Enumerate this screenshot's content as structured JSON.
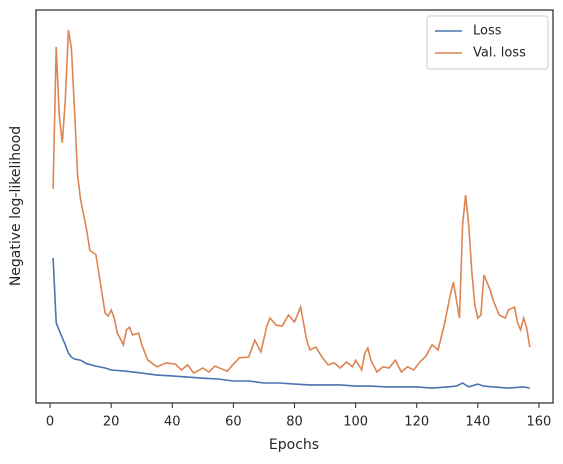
{
  "chart_data": {
    "type": "line",
    "x_label": "Epochs",
    "y_label": "Negative log-likelihood",
    "xlim": [
      -4.6,
      164.6
    ],
    "xticks": [
      0,
      20,
      40,
      60,
      80,
      100,
      120,
      140,
      160
    ],
    "ylim": [
      0,
      100
    ],
    "grid": false,
    "legend": "upper right",
    "series": [
      {
        "name": "Loss",
        "color": "#4c72b0",
        "x": [
          1,
          2,
          3,
          4,
          5,
          6,
          7,
          8,
          10,
          12,
          15,
          18,
          20,
          25,
          30,
          35,
          40,
          45,
          50,
          55,
          60,
          65,
          70,
          75,
          80,
          85,
          90,
          95,
          100,
          105,
          110,
          115,
          120,
          125,
          130,
          133,
          135,
          137,
          140,
          142,
          145,
          150,
          155,
          157
        ],
        "values": [
          36.9,
          20.4,
          18.5,
          16.6,
          14.8,
          12.7,
          11.7,
          11.2,
          10.9,
          10.0,
          9.4,
          8.9,
          8.4,
          8.1,
          7.6,
          7.1,
          6.9,
          6.6,
          6.3,
          6.1,
          5.6,
          5.6,
          5.1,
          5.1,
          4.8,
          4.6,
          4.6,
          4.6,
          4.3,
          4.3,
          4.1,
          4.1,
          4.1,
          3.8,
          4.1,
          4.3,
          5.1,
          4.1,
          4.8,
          4.3,
          4.1,
          3.8,
          4.1,
          3.8
        ]
      },
      {
        "name": "Val. loss",
        "color": "#dd8452",
        "x": [
          1,
          2,
          3,
          4,
          5,
          6,
          7,
          8,
          9,
          10,
          12,
          13,
          15,
          18,
          19,
          20,
          21,
          22,
          24,
          25,
          26,
          27,
          29,
          30,
          32,
          35,
          38,
          41,
          43,
          45,
          47,
          50,
          52,
          54,
          56,
          58,
          60,
          62,
          65,
          67,
          69,
          71,
          72,
          74,
          76,
          78,
          80,
          82,
          84,
          85,
          87,
          89,
          91,
          93,
          95,
          97,
          99,
          100,
          102,
          103,
          104,
          105,
          107,
          109,
          111,
          113,
          115,
          117,
          119,
          121,
          123,
          125,
          127,
          129,
          131,
          132,
          133,
          134,
          135,
          136,
          137,
          138,
          139,
          140,
          141,
          142,
          144,
          145,
          147,
          149,
          150,
          152,
          153,
          154,
          155,
          156,
          157
        ],
        "values": [
          54.5,
          90.6,
          73.3,
          66.2,
          77.1,
          94.9,
          90.3,
          74.6,
          58.0,
          51.7,
          44.0,
          38.9,
          37.7,
          22.9,
          22.1,
          23.7,
          21.6,
          17.8,
          14.8,
          18.6,
          19.3,
          17.3,
          17.8,
          14.8,
          10.9,
          9.2,
          10.2,
          9.9,
          8.4,
          9.7,
          7.6,
          8.9,
          7.9,
          9.4,
          8.7,
          8.1,
          9.9,
          11.5,
          11.7,
          16.0,
          13.0,
          19.8,
          21.6,
          19.8,
          19.6,
          22.4,
          20.6,
          24.4,
          16.0,
          13.5,
          14.2,
          11.7,
          9.7,
          10.2,
          8.9,
          10.4,
          9.2,
          10.9,
          8.4,
          12.7,
          14.0,
          10.9,
          7.9,
          9.2,
          8.9,
          10.9,
          7.9,
          9.2,
          8.4,
          10.4,
          11.9,
          14.8,
          13.5,
          19.8,
          27.5,
          30.8,
          26.2,
          21.6,
          45.3,
          52.9,
          45.3,
          33.8,
          24.9,
          21.6,
          22.4,
          32.6,
          28.8,
          26.2,
          22.4,
          21.6,
          23.7,
          24.4,
          20.4,
          18.6,
          21.6,
          19.1,
          14.2
        ]
      }
    ]
  }
}
